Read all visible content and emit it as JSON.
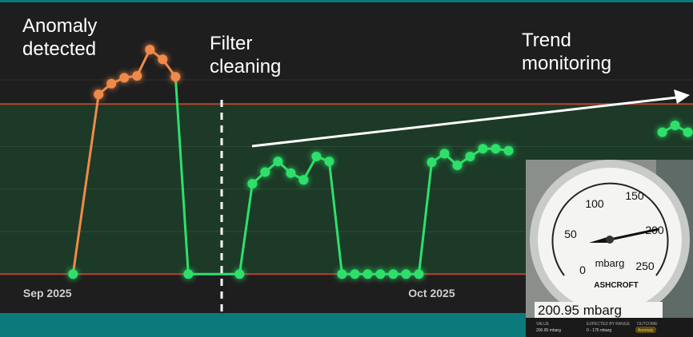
{
  "chart_data": {
    "type": "line",
    "annotations": [
      "Anomaly\ndetected",
      "Filter\ncleaning",
      "Trend\nmonitoring"
    ],
    "x": [
      2,
      4,
      5,
      6,
      7,
      8,
      9,
      10,
      11,
      15,
      16,
      17,
      18,
      19,
      20,
      21,
      22,
      23,
      24,
      25,
      26,
      27,
      28,
      29,
      30,
      31,
      32,
      33,
      34,
      35,
      36,
      37,
      48,
      49,
      50
    ],
    "series": [
      {
        "color": "#2ee06a",
        "anomaly_color": "#f08a4b",
        "values": [
          0,
          185,
          196,
          202,
          204,
          231,
          221,
          203,
          0,
          0,
          93,
          105,
          116,
          104,
          97,
          121,
          116,
          0,
          0,
          0,
          0,
          0,
          0,
          0,
          115,
          124,
          112,
          121,
          129,
          129,
          127,
          null,
          146,
          153,
          146
        ],
        "anomaly": [
          false,
          true,
          true,
          true,
          true,
          true,
          true,
          true,
          false,
          false,
          false,
          false,
          false,
          false,
          false,
          false,
          false,
          false,
          false,
          false,
          false,
          false,
          false,
          false,
          false,
          false,
          false,
          false,
          false,
          false,
          false,
          false,
          false,
          false,
          false
        ]
      }
    ],
    "expected_range": [
      0,
      175
    ],
    "xlim": [
      -3.7,
      50.4
    ],
    "ylim": [
      -40,
      282
    ],
    "xticks": [
      {
        "value": 0,
        "label": "Sep 2025"
      },
      {
        "value": 30,
        "label": "Oct 2025"
      }
    ],
    "inset": {
      "dial_labels": [
        "0",
        "50",
        "100",
        "150",
        "200",
        "250"
      ],
      "unit": "mbarg",
      "brand": "ASHCROFT",
      "reading": "200.95  mbarg",
      "footer": [
        [
          "VALUE",
          "200.95 mbarg"
        ],
        [
          "EXPECTED BY RANGE",
          "0 - 175 mbarg"
        ],
        [
          "OUTCOME",
          "Anomaly"
        ]
      ]
    }
  }
}
